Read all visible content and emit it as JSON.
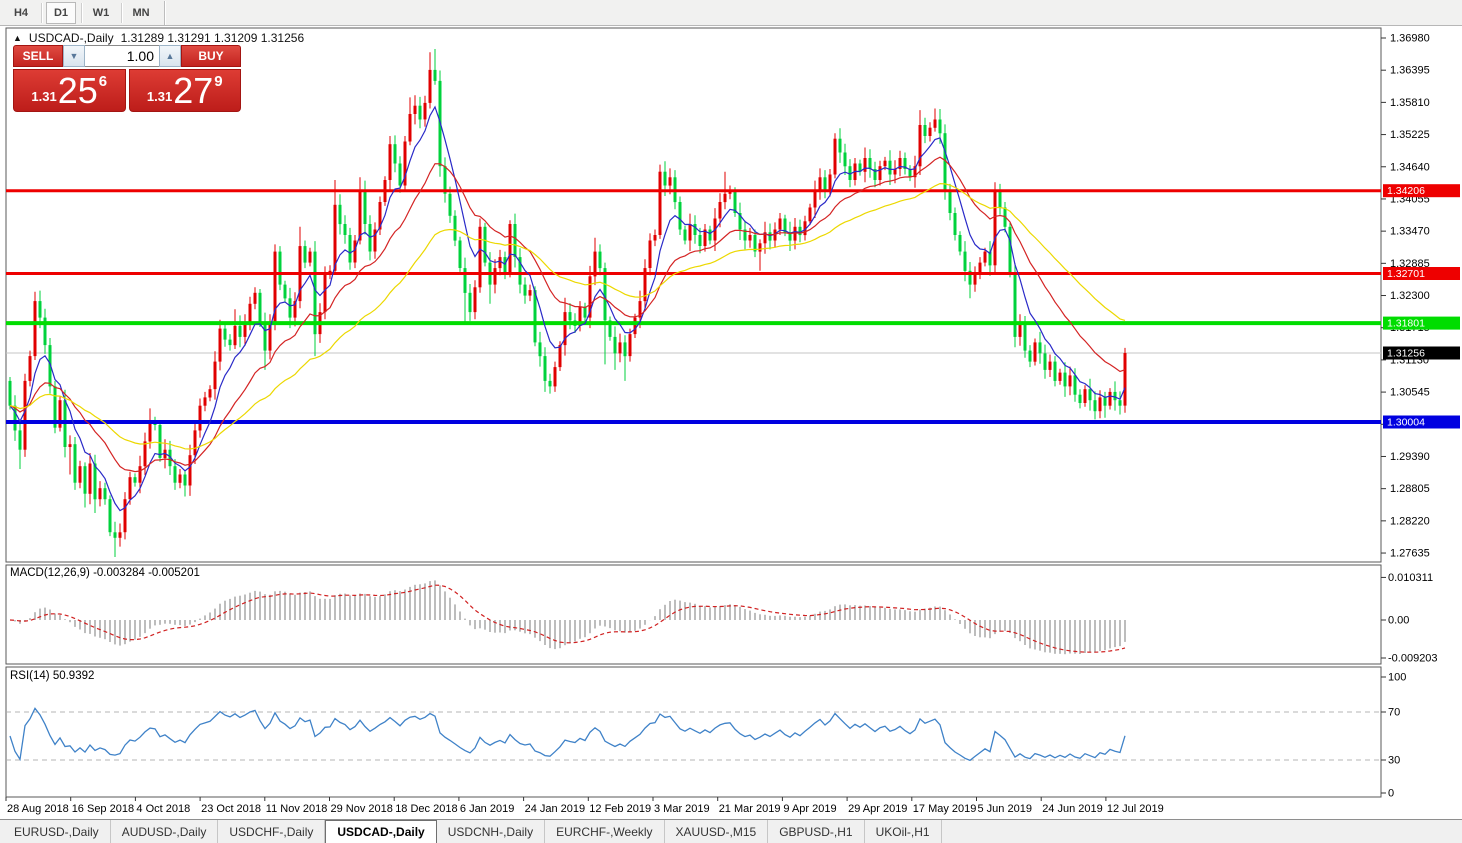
{
  "toolbar": {
    "timeframes": [
      "H4",
      "D1",
      "W1",
      "MN"
    ],
    "active": "D1"
  },
  "chart_header": {
    "collapse_icon": "▲",
    "title": "USDCAD-,Daily",
    "ohlc": "1.31289 1.31291 1.31209 1.31256"
  },
  "trade_panel": {
    "sell_label": "SELL",
    "buy_label": "BUY",
    "volume_value": "1.00",
    "volume_down_icon": "▼",
    "volume_up_icon": "▲",
    "bid": {
      "prefix": "1.31",
      "big": "25",
      "sup": "6"
    },
    "ask": {
      "prefix": "1.31",
      "big": "27",
      "sup": "9"
    }
  },
  "indicator_labels": {
    "macd": "MACD(12,26,9) -0.003284 -0.005201",
    "rsi": "RSI(14) 50.9392"
  },
  "tabs": [
    "EURUSD-,Daily",
    "AUDUSD-,Daily",
    "USDCHF-,Daily",
    "USDCAD-,Daily",
    "USDCNH-,Daily",
    "EURCHF-,Weekly",
    "XAUUSD-,M15",
    "GBPUSD-,H1",
    "UKOil-,H1"
  ],
  "active_tab": "USDCAD-,Daily",
  "chart_data": {
    "type": "candlestick",
    "symbol": "USDCAD",
    "timeframe": "Daily",
    "note_colors": "bullish candles are red, bearish candles are green in this theme",
    "price_axis_ticks": [
      "1.36980",
      "1.36395",
      "1.35810",
      "1.35225",
      "1.34640",
      "1.34055",
      "1.33470",
      "1.32885",
      "1.32300",
      "1.31715",
      "1.31130",
      "1.30545",
      "1.29975",
      "1.29390",
      "1.28805",
      "1.28220",
      "1.27635"
    ],
    "x_labels": [
      "28 Aug 2018",
      "16 Sep 2018",
      "4 Oct 2018",
      "23 Oct 2018",
      "11 Nov 2018",
      "29 Nov 2018",
      "18 Dec 2018",
      "6 Jan 2019",
      "24 Jan 2019",
      "12 Feb 2019",
      "3 Mar 2019",
      "21 Mar 2019",
      "9 Apr 2019",
      "29 Apr 2019",
      "17 May 2019",
      "5 Jun 2019",
      "24 Jun 2019",
      "12 Jul 2019"
    ],
    "candles_per_x_label": 13,
    "price_range_top": 1.3698,
    "price_range_bottom": 1.27635,
    "sr_lines": [
      {
        "price": 1.34206,
        "label": "1.34206",
        "color": "#ee0000",
        "width": 3
      },
      {
        "price": 1.32701,
        "label": "1.32701",
        "color": "#ee0000",
        "width": 3
      },
      {
        "price": 1.31801,
        "label": "1.31801",
        "color": "#00dd00",
        "width": 4
      },
      {
        "price": 1.30004,
        "label": "1.30004",
        "color": "#0000e0",
        "width": 4
      }
    ],
    "current_price": {
      "value": 1.31256,
      "label": "1.31256",
      "line_color": "#c4c4c4",
      "badge_color": "#000000"
    },
    "candle_colors": {
      "bull": "#e00000",
      "bear": "#00d23c"
    },
    "ma_lines": [
      {
        "name": "ma-fast",
        "period": 7,
        "color": "#2a2ac8"
      },
      {
        "name": "ma-mid",
        "period": 20,
        "color": "#d42424"
      },
      {
        "name": "ma-slow",
        "period": 45,
        "color": "#ecd800"
      }
    ],
    "macd": {
      "params": [
        12,
        26,
        9
      ],
      "bar_color": "#bdbdbd",
      "signal_color": "#d02020",
      "axis_ticks": [
        {
          "label": "0.010311",
          "value": 0.010311
        },
        {
          "label": "0.00",
          "value": 0
        },
        {
          "label": "-0.009203",
          "value": -0.009203
        }
      ],
      "current_macd": -0.003284,
      "current_signal": -0.005201
    },
    "rsi": {
      "period": 14,
      "color": "#3f82c8",
      "levels": [
        70,
        30
      ],
      "axis_ticks": [
        {
          "label": "100",
          "value": 100
        },
        {
          "label": "70",
          "value": 70
        },
        {
          "label": "30",
          "value": 30
        },
        {
          "label": "0",
          "value": 0
        }
      ],
      "current": 50.9392
    },
    "first_open": 1.3075,
    "closes": [
      1.303,
      1.2985,
      1.295,
      1.3075,
      1.312,
      1.322,
      1.319,
      1.314,
      1.3065,
      1.299,
      1.304,
      1.2955,
      1.296,
      1.289,
      1.292,
      1.287,
      1.2925,
      1.286,
      1.288,
      1.286,
      1.28,
      1.279,
      1.28,
      1.286,
      1.29,
      1.289,
      1.292,
      1.2965,
      1.3,
      1.2995,
      1.2935,
      1.295,
      1.292,
      1.289,
      1.2905,
      1.2885,
      1.294,
      1.2985,
      1.303,
      1.3045,
      1.306,
      1.311,
      1.317,
      1.315,
      1.314,
      1.3175,
      1.3155,
      1.318,
      1.3215,
      1.3235,
      1.318,
      1.313,
      1.318,
      1.331,
      1.325,
      1.3225,
      1.319,
      1.322,
      1.332,
      1.329,
      1.331,
      1.316,
      1.32,
      1.327,
      1.3275,
      1.3395,
      1.336,
      1.334,
      1.329,
      1.333,
      1.342,
      1.336,
      1.331,
      1.335,
      1.34,
      1.344,
      1.3505,
      1.347,
      1.343,
      1.351,
      1.356,
      1.3575,
      1.355,
      1.358,
      1.364,
      1.362,
      1.3465,
      1.3415,
      1.3375,
      1.333,
      1.328,
      1.3235,
      1.32,
      1.3245,
      1.3355,
      1.329,
      1.325,
      1.328,
      1.33,
      1.327,
      1.336,
      1.33,
      1.325,
      1.323,
      1.324,
      1.3145,
      1.312,
      1.3075,
      1.3065,
      1.31,
      1.314,
      1.32,
      1.3185,
      1.3175,
      1.321,
      1.319,
      1.3265,
      1.331,
      1.328,
      1.3185,
      1.3155,
      1.3125,
      1.3145,
      1.312,
      1.316,
      1.319,
      1.322,
      1.328,
      1.333,
      1.334,
      1.3455,
      1.343,
      1.3445,
      1.34,
      1.335,
      1.333,
      1.336,
      1.334,
      1.332,
      1.335,
      1.333,
      1.337,
      1.34,
      1.3415,
      1.342,
      1.338,
      1.335,
      1.333,
      1.334,
      1.331,
      1.3325,
      1.3345,
      1.333,
      1.335,
      1.337,
      1.3345,
      1.333,
      1.3355,
      1.334,
      1.3365,
      1.339,
      1.342,
      1.3445,
      1.342,
      1.345,
      1.3515,
      1.349,
      1.3465,
      1.344,
      1.347,
      1.3455,
      1.348,
      1.346,
      1.344,
      1.3465,
      1.3475,
      1.345,
      1.346,
      1.348,
      1.346,
      1.3445,
      1.3465,
      1.354,
      1.352,
      1.3535,
      1.355,
      1.3525,
      1.342,
      1.338,
      1.334,
      1.331,
      1.3275,
      1.325,
      1.327,
      1.329,
      1.331,
      1.3285,
      1.342,
      1.339,
      1.3355,
      1.327,
      1.3155,
      1.318,
      1.313,
      1.311,
      1.3145,
      1.3125,
      1.3095,
      1.311,
      1.3075,
      1.309,
      1.3065,
      1.3085,
      1.305,
      1.3035,
      1.306,
      1.304,
      1.302,
      1.3045,
      1.303,
      1.3055,
      1.304,
      1.303,
      1.31256
    ],
    "wick_overrides": {
      "2": [
        null,
        1.2915
      ],
      "5": [
        1.3237,
        null
      ],
      "12": [
        null,
        1.2905
      ],
      "15": [
        null,
        1.2845
      ],
      "17": [
        null,
        1.2835
      ],
      "21": [
        null,
        1.2755
      ],
      "28": [
        1.3025,
        null
      ],
      "35": [
        null,
        1.2865
      ],
      "45": [
        1.3205,
        null
      ],
      "51": [
        null,
        1.3095
      ],
      "58": [
        1.3355,
        null
      ],
      "61": [
        null,
        1.312
      ],
      "65": [
        1.344,
        null
      ],
      "70": [
        1.3445,
        null
      ],
      "76": [
        1.352,
        null
      ],
      "80": [
        1.359,
        null
      ],
      "84": [
        1.3672,
        null
      ],
      "85": [
        1.3678,
        null
      ],
      "91": [
        null,
        1.318
      ],
      "94": [
        1.337,
        null
      ],
      "96": [
        null,
        1.3215
      ],
      "103": [
        null,
        1.3215
      ],
      "107": [
        null,
        1.3055
      ],
      "111": [
        1.3226,
        null
      ],
      "117": [
        1.3335,
        null
      ],
      "119": [
        null,
        1.3105
      ],
      "121": [
        null,
        1.3095
      ],
      "123": [
        null,
        1.3075
      ],
      "130": [
        1.3468,
        null
      ],
      "143": [
        1.3455,
        null
      ],
      "150": [
        null,
        1.3275
      ],
      "165": [
        1.3525,
        null
      ],
      "182": [
        1.3567,
        null
      ],
      "185": [
        1.357,
        null
      ],
      "192": [
        null,
        1.3225
      ],
      "217": [
        null,
        1.3005
      ],
      "219": [
        null,
        1.3008
      ],
      "223": [
        1.3135,
        null
      ]
    }
  }
}
